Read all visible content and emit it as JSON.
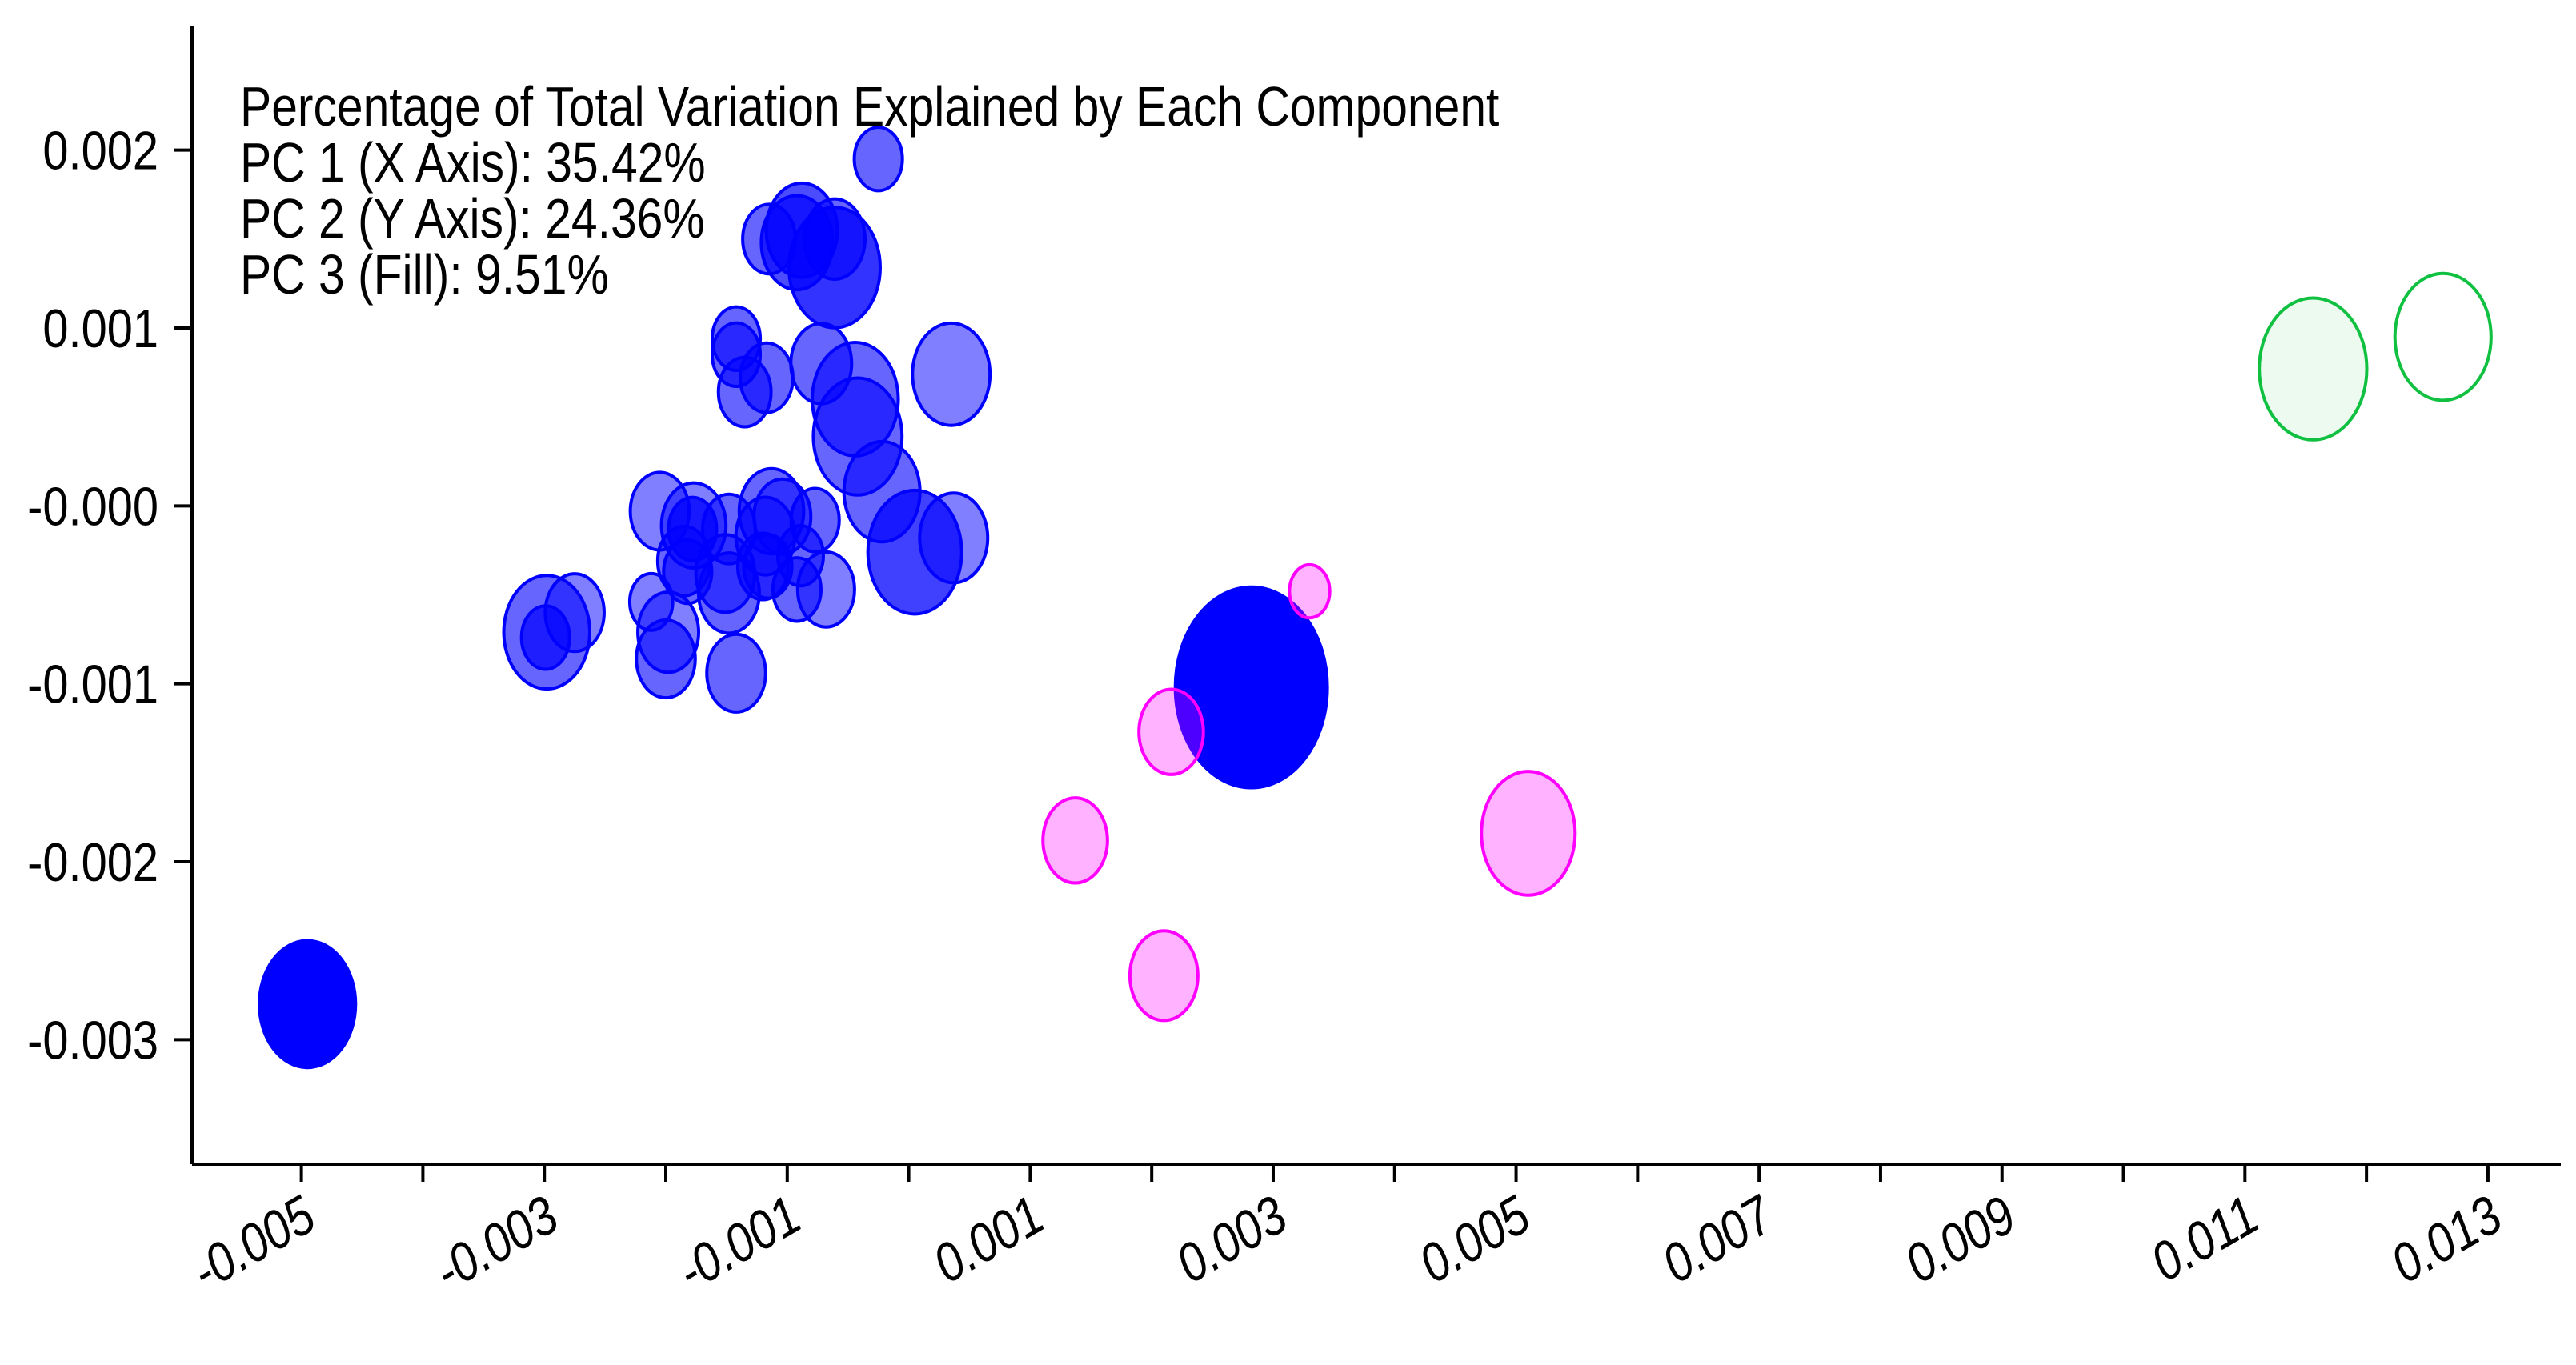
{
  "chart_data": {
    "type": "scatter",
    "title": "",
    "xlabel": "",
    "ylabel": "",
    "annotation": {
      "header": "Percentage of Total Variation Explained by Each Component",
      "lines": [
        "PC 1 (X Axis): 35.42%",
        "PC 2 (Y Axis): 24.36%",
        "PC 3 (Fill): 9.51%"
      ]
    },
    "xlim": [
      -0.0059,
      0.0136
    ],
    "ylim": [
      -0.0037,
      0.0027
    ],
    "x_ticks": [
      -0.005,
      -0.004,
      -0.003,
      -0.002,
      -0.001,
      0.0,
      0.001,
      0.002,
      0.003,
      0.004,
      0.005,
      0.006,
      0.007,
      0.008,
      0.009,
      0.01,
      0.011,
      0.012,
      0.013
    ],
    "x_tick_labels": [
      "-0.005",
      "",
      "-0.003",
      "",
      "-0.001",
      "",
      "0.001",
      "",
      "0.003",
      "",
      "0.005",
      "",
      "0.007",
      "",
      "0.009",
      "",
      "0.011",
      "",
      "0.013"
    ],
    "y_ticks": [
      0.002,
      0.001,
      0.0,
      -0.001,
      -0.002,
      -0.003
    ],
    "y_tick_labels": [
      "0.002",
      "0.001",
      "-0.000",
      "-0.001",
      "-0.002",
      "-0.003"
    ],
    "grid": false,
    "series": [
      {
        "color": "#0000ff",
        "points": [
          {
            "x": -0.00495,
            "y": -0.0028,
            "size": 0.4,
            "fill": 1.0
          },
          {
            "x": 0.00282,
            "y": -0.00102,
            "size": 1.0,
            "fill": 1.0
          },
          {
            "x": -0.00298,
            "y": -0.00071,
            "size": 0.32,
            "fill": 0.6
          },
          {
            "x": -0.00299,
            "y": -0.00074,
            "size": 0.1,
            "fill": 0.7
          },
          {
            "x": -0.00275,
            "y": -0.0006,
            "size": 0.15,
            "fill": 0.5
          },
          {
            "x": -0.00212,
            "y": -0.00054,
            "size": 0.08,
            "fill": 0.5
          },
          {
            "x": -0.00198,
            "y": -0.00071,
            "size": 0.16,
            "fill": 0.5
          },
          {
            "x": -0.002,
            "y": -0.00086,
            "size": 0.15,
            "fill": 0.6
          },
          {
            "x": -0.00205,
            "y": -3e-05,
            "size": 0.15,
            "fill": 0.5
          },
          {
            "x": -0.00185,
            "y": -0.00031,
            "size": 0.12,
            "fill": 0.6
          },
          {
            "x": -0.00177,
            "y": -0.00011,
            "size": 0.18,
            "fill": 0.5
          },
          {
            "x": -0.00178,
            "y": -0.00013,
            "size": 0.1,
            "fill": 0.8
          },
          {
            "x": -0.00182,
            "y": -0.00037,
            "size": 0.1,
            "fill": 0.6
          },
          {
            "x": -0.00148,
            "y": -0.00049,
            "size": 0.16,
            "fill": 0.6
          },
          {
            "x": -0.00148,
            "y": -0.00013,
            "size": 0.12,
            "fill": 0.6
          },
          {
            "x": -0.00151,
            "y": -0.00038,
            "size": 0.15,
            "fill": 0.5
          },
          {
            "x": -0.00142,
            "y": 0.00094,
            "size": 0.1,
            "fill": 0.6
          },
          {
            "x": -0.00142,
            "y": 0.00085,
            "size": 0.1,
            "fill": 0.6
          },
          {
            "x": -0.00135,
            "y": 0.00064,
            "size": 0.12,
            "fill": 0.6
          },
          {
            "x": -0.00142,
            "y": -0.00094,
            "size": 0.15,
            "fill": 0.6
          },
          {
            "x": -0.00118,
            "y": -0.00017,
            "size": 0.15,
            "fill": 0.5
          },
          {
            "x": -0.00113,
            "y": -3e-05,
            "size": 0.18,
            "fill": 0.6
          },
          {
            "x": -0.00104,
            "y": -6e-05,
            "size": 0.14,
            "fill": 0.5
          },
          {
            "x": -0.0012,
            "y": -0.00034,
            "size": 0.11,
            "fill": 0.6
          },
          {
            "x": -0.00117,
            "y": 0.00072,
            "size": 0.12,
            "fill": 0.6
          },
          {
            "x": -0.00116,
            "y": -0.00034,
            "size": 0.1,
            "fill": 0.6
          },
          {
            "x": -0.00089,
            "y": -0.00028,
            "size": 0.09,
            "fill": 0.6
          },
          {
            "x": -0.00077,
            "y": -8e-05,
            "size": 0.1,
            "fill": 0.6
          },
          {
            "x": -0.00092,
            "y": -0.00047,
            "size": 0.1,
            "fill": 0.6
          },
          {
            "x": -0.00068,
            "y": -0.00047,
            "size": 0.14,
            "fill": 0.5
          },
          {
            "x": -0.00072,
            "y": 0.0008,
            "size": 0.16,
            "fill": 0.6
          },
          {
            "x": -0.00115,
            "y": 0.0015,
            "size": 0.12,
            "fill": 0.6
          },
          {
            "x": -0.00088,
            "y": 0.00155,
            "size": 0.22,
            "fill": 0.7
          },
          {
            "x": -0.00092,
            "y": 0.00148,
            "size": 0.22,
            "fill": 0.7
          },
          {
            "x": -0.00061,
            "y": 0.00134,
            "size": 0.36,
            "fill": 0.8
          },
          {
            "x": -0.00061,
            "y": 0.0015,
            "size": 0.16,
            "fill": 0.6
          },
          {
            "x": -0.00044,
            "y": 0.0006,
            "size": 0.32,
            "fill": 0.6
          },
          {
            "x": -0.00042,
            "y": 0.00039,
            "size": 0.34,
            "fill": 0.6
          },
          {
            "x": -0.00022,
            "y": 8e-05,
            "size": 0.25,
            "fill": 0.6
          },
          {
            "x": 5e-05,
            "y": -0.00026,
            "size": 0.38,
            "fill": 0.75
          },
          {
            "x": -0.00025,
            "y": 0.00195,
            "size": 0.1,
            "fill": 0.6
          },
          {
            "x": 0.00035,
            "y": 0.00074,
            "size": 0.26,
            "fill": 0.5
          },
          {
            "x": 0.00037,
            "y": -0.00018,
            "size": 0.2,
            "fill": 0.5
          }
        ]
      },
      {
        "color": "#ff00ff",
        "points": [
          {
            "x": 0.00216,
            "y": -0.00127,
            "size": 0.18,
            "fill": 0.3
          },
          {
            "x": 0.00137,
            "y": -0.00188,
            "size": 0.18,
            "fill": 0.3
          },
          {
            "x": 0.0021,
            "y": -0.00264,
            "size": 0.2,
            "fill": 0.3
          },
          {
            "x": 0.0051,
            "y": -0.00184,
            "size": 0.38,
            "fill": 0.3
          },
          {
            "x": 0.0033,
            "y": -0.00048,
            "size": 0.07,
            "fill": 0.3
          }
        ]
      },
      {
        "color": "#10c040",
        "points": [
          {
            "x": 0.01156,
            "y": 0.00077,
            "size": 0.5,
            "fill": 0.08
          },
          {
            "x": 0.01263,
            "y": 0.00095,
            "size": 0.4,
            "fill": 0.0
          }
        ]
      }
    ]
  }
}
